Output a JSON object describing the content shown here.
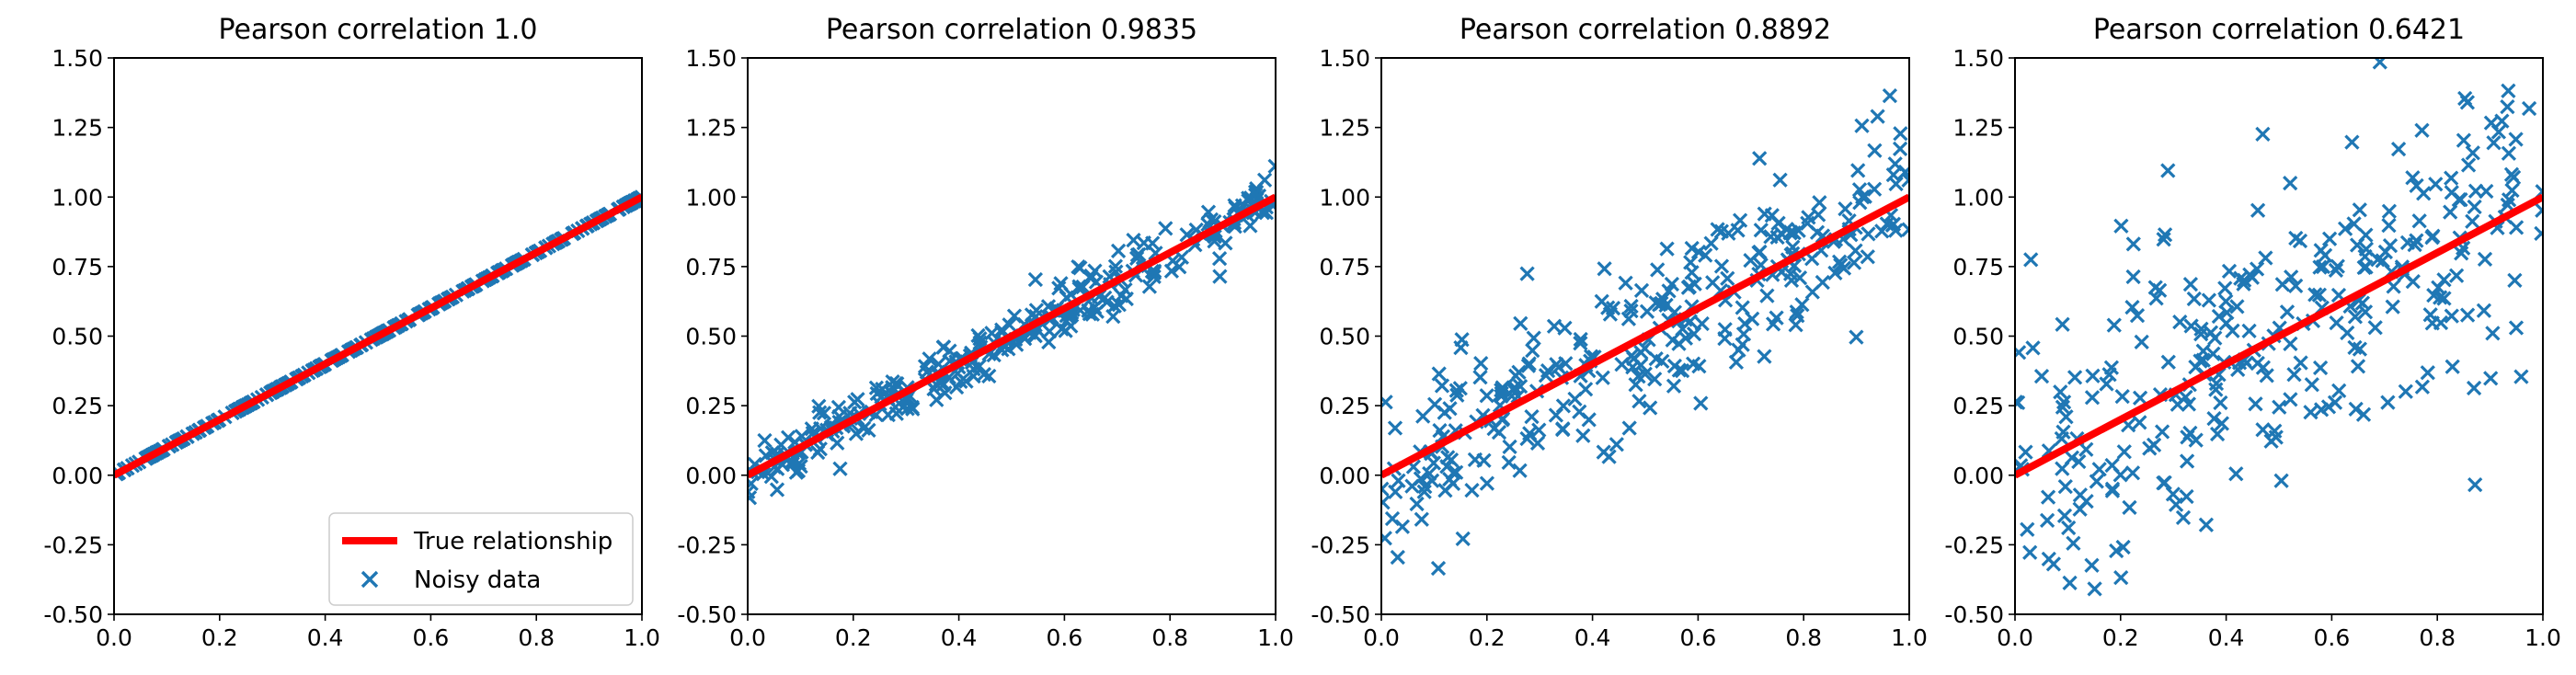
{
  "colors": {
    "scatter": "#1f77b4",
    "true_line": "#ff0000",
    "axes": "#000000",
    "background": "#ffffff",
    "legend_border": "#cccccc"
  },
  "chart_data": [
    {
      "type": "scatter",
      "title": "Pearson correlation 1.0",
      "xlim": [
        0.0,
        1.0
      ],
      "ylim": [
        -0.5,
        1.5
      ],
      "xticks": [
        "0.0",
        "0.2",
        "0.4",
        "0.6",
        "0.8",
        "1.0"
      ],
      "yticks": [
        "-0.50",
        "-0.25",
        "0.00",
        "0.25",
        "0.50",
        "0.75",
        "1.00",
        "1.25",
        "1.50"
      ],
      "noise_sd": 0.0,
      "true_line": {
        "name": "True relationship",
        "x": [
          0,
          1
        ],
        "y": [
          0,
          1
        ]
      },
      "series": [
        {
          "name": "Noisy data",
          "marker": "x",
          "n_points": 300
        }
      ],
      "legend": {
        "position": "bottom-right",
        "entries": [
          "True relationship",
          "Noisy data"
        ]
      }
    },
    {
      "type": "scatter",
      "title": "Pearson correlation 0.9835",
      "xlim": [
        0.0,
        1.0
      ],
      "ylim": [
        -0.5,
        1.5
      ],
      "xticks": [
        "0.0",
        "0.2",
        "0.4",
        "0.6",
        "0.8",
        "1.0"
      ],
      "yticks": [
        "-0.50",
        "-0.25",
        "0.00",
        "0.25",
        "0.50",
        "0.75",
        "1.00",
        "1.25",
        "1.50"
      ],
      "noise_sd": 0.05,
      "true_line": {
        "name": "True relationship",
        "x": [
          0,
          1
        ],
        "y": [
          0,
          1
        ]
      },
      "series": [
        {
          "name": "Noisy data",
          "marker": "x",
          "n_points": 300
        }
      ]
    },
    {
      "type": "scatter",
      "title": "Pearson correlation 0.8892",
      "xlim": [
        0.0,
        1.0
      ],
      "ylim": [
        -0.5,
        1.5
      ],
      "xticks": [
        "0.0",
        "0.2",
        "0.4",
        "0.6",
        "0.8",
        "1.0"
      ],
      "yticks": [
        "-0.50",
        "-0.25",
        "0.00",
        "0.25",
        "0.50",
        "0.75",
        "1.00",
        "1.25",
        "1.50"
      ],
      "noise_sd": 0.15,
      "true_line": {
        "name": "True relationship",
        "x": [
          0,
          1
        ],
        "y": [
          0,
          1
        ]
      },
      "series": [
        {
          "name": "Noisy data",
          "marker": "x",
          "n_points": 300
        }
      ]
    },
    {
      "type": "scatter",
      "title": "Pearson correlation 0.6421",
      "xlim": [
        0.0,
        1.0
      ],
      "ylim": [
        -0.5,
        1.5
      ],
      "xticks": [
        "0.0",
        "0.2",
        "0.4",
        "0.6",
        "0.8",
        "1.0"
      ],
      "yticks": [
        "-0.50",
        "-0.25",
        "0.00",
        "0.25",
        "0.50",
        "0.75",
        "1.00",
        "1.25",
        "1.50"
      ],
      "noise_sd": 0.3,
      "true_line": {
        "name": "True relationship",
        "x": [
          0,
          1
        ],
        "y": [
          0,
          1
        ]
      },
      "series": [
        {
          "name": "Noisy data",
          "marker": "x",
          "n_points": 300
        }
      ]
    }
  ]
}
